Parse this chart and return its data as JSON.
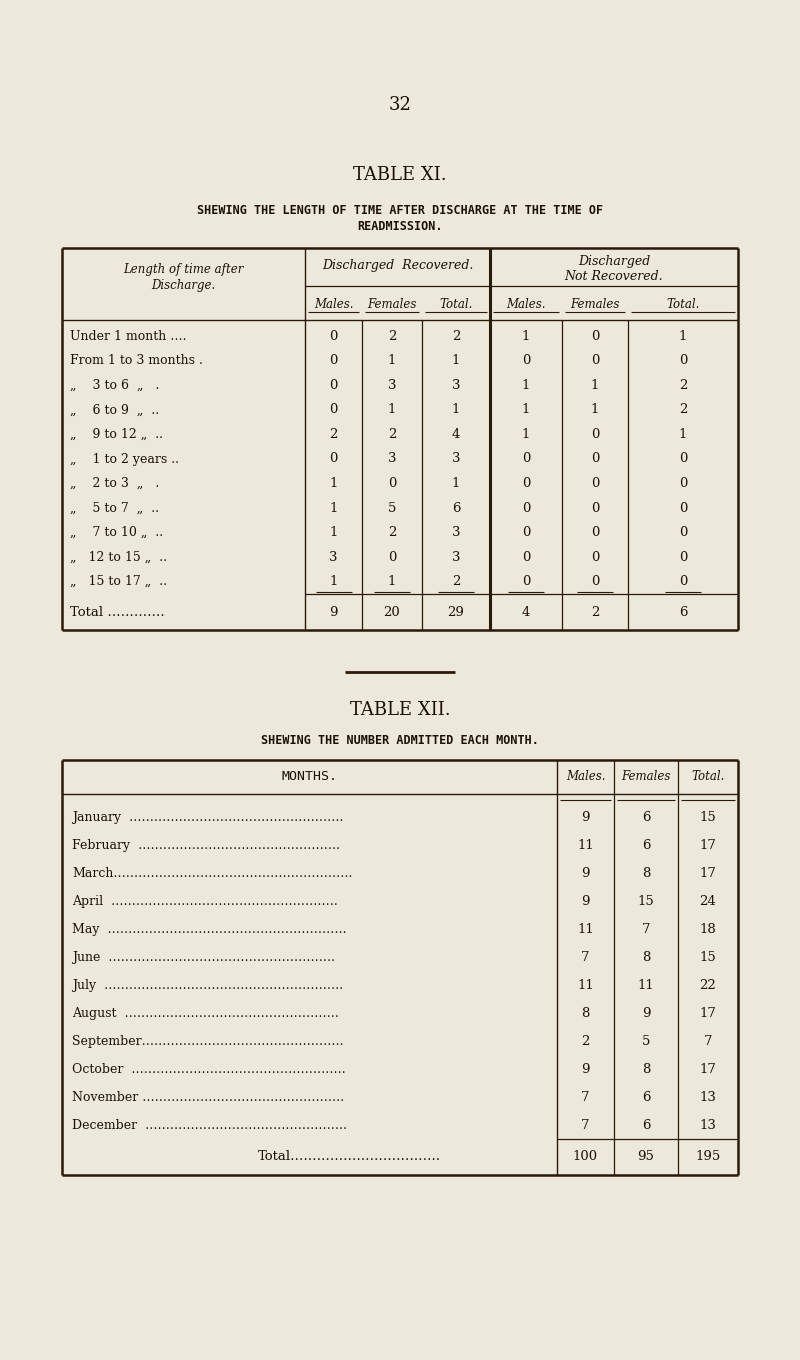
{
  "bg_color": "#ede8dc",
  "page_number": "32",
  "table11": {
    "title": "TABLE XI.",
    "subtitle1": "SHEWING THE LENGTH OF TIME AFTER DISCHARGE AT THE TIME OF",
    "subtitle2": "READMISSION.",
    "rows": [
      [
        "Under 1 month ….",
        0,
        2,
        2,
        1,
        0,
        1
      ],
      [
        "From 1 to 3 months .",
        0,
        1,
        1,
        0,
        0,
        0
      ],
      [
        "„    3 to 6  „   .",
        0,
        3,
        3,
        1,
        1,
        2
      ],
      [
        "„    6 to 9  „  ..",
        0,
        1,
        1,
        1,
        1,
        2
      ],
      [
        "„    9 to 12 „  ..",
        2,
        2,
        4,
        1,
        0,
        1
      ],
      [
        "„    1 to 2 years ..",
        0,
        3,
        3,
        0,
        0,
        0
      ],
      [
        "„    2 to 3  „   .",
        1,
        0,
        1,
        0,
        0,
        0
      ],
      [
        "„    5 to 7  „  ..",
        1,
        5,
        6,
        0,
        0,
        0
      ],
      [
        "„    7 to 10 „  ..",
        1,
        2,
        3,
        0,
        0,
        0
      ],
      [
        "„   12 to 15 „  ..",
        3,
        0,
        3,
        0,
        0,
        0
      ],
      [
        "„   15 to 17 „  ..",
        1,
        1,
        2,
        0,
        0,
        0
      ]
    ],
    "total_row": [
      "Total ………….",
      9,
      20,
      29,
      4,
      2,
      6
    ]
  },
  "table12": {
    "title": "TABLE XII.",
    "subtitle": "SHEWING THE NUMBER ADMITTED EACH MONTH.",
    "rows": [
      [
        "January",
        9,
        6,
        15
      ],
      [
        "February",
        11,
        6,
        17
      ],
      [
        "March",
        9,
        8,
        17
      ],
      [
        "April",
        9,
        15,
        24
      ],
      [
        "May",
        11,
        7,
        18
      ],
      [
        "June",
        7,
        8,
        15
      ],
      [
        "July",
        11,
        11,
        22
      ],
      [
        "August",
        8,
        9,
        17
      ],
      [
        "September",
        2,
        5,
        7
      ],
      [
        "October",
        9,
        8,
        17
      ],
      [
        "November",
        7,
        6,
        13
      ],
      [
        "December",
        7,
        6,
        13
      ]
    ],
    "total_row": [
      "Total",
      100,
      95,
      195
    ]
  }
}
